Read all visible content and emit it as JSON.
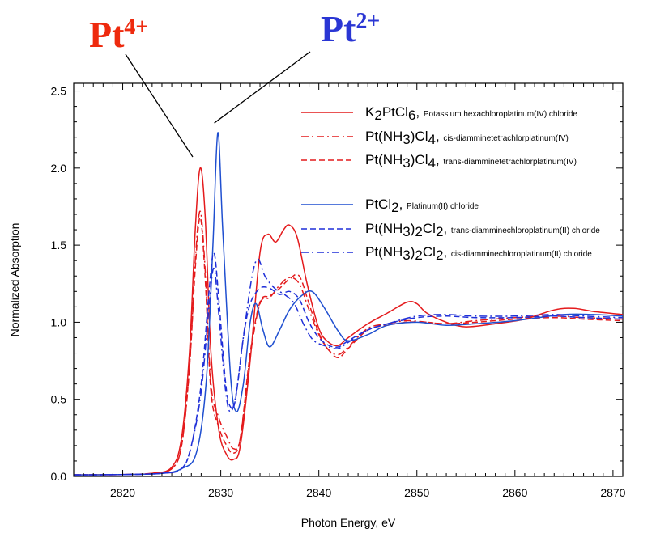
{
  "chart_data": {
    "type": "line",
    "xlabel": "Photon Energy, eV",
    "ylabel": "Normalized Absorption",
    "xlim": [
      2815,
      2871
    ],
    "ylim": [
      0,
      2.55
    ],
    "x_ticks": [
      "2820",
      "2830",
      "2840",
      "2850",
      "2860",
      "2870"
    ],
    "y_ticks": [
      "0.0",
      "0.5",
      "1.0",
      "1.5",
      "2.0",
      "2.5"
    ],
    "grid": false,
    "legend_position": "top-right",
    "annotations": [
      {
        "base": "Pt",
        "sup": "4+",
        "color": "#ee2a0e",
        "point_x": 2827.8,
        "point_y": 2.02
      },
      {
        "base": "Pt",
        "sup": "2+",
        "color": "#2a36d4",
        "point_x": 2830.0,
        "point_y": 2.24
      }
    ],
    "series": [
      {
        "legend": [
          {
            "t": "K"
          },
          {
            "t": "2",
            "sub": true
          },
          {
            "t": "PtCl"
          },
          {
            "t": "6",
            "sub": true
          },
          {
            "t": ",  "
          },
          {
            "t": "Potassium hexachloroplatinum(IV) chloride",
            "small": true
          }
        ],
        "color": "#e41a1c",
        "dash": "solid",
        "points": [
          [
            2815,
            0.01
          ],
          [
            2820,
            0.012
          ],
          [
            2823,
            0.02
          ],
          [
            2825,
            0.06
          ],
          [
            2826,
            0.25
          ],
          [
            2826.8,
            0.8
          ],
          [
            2827.4,
            1.6
          ],
          [
            2827.9,
            2.0
          ],
          [
            2828.4,
            1.7
          ],
          [
            2829,
            0.8
          ],
          [
            2829.8,
            0.3
          ],
          [
            2830.6,
            0.14
          ],
          [
            2831.3,
            0.11
          ],
          [
            2832,
            0.2
          ],
          [
            2833,
            0.75
          ],
          [
            2834,
            1.45
          ],
          [
            2834.8,
            1.57
          ],
          [
            2835.6,
            1.52
          ],
          [
            2836.4,
            1.6
          ],
          [
            2837,
            1.63
          ],
          [
            2837.8,
            1.55
          ],
          [
            2838.8,
            1.25
          ],
          [
            2840,
            0.96
          ],
          [
            2841,
            0.87
          ],
          [
            2842,
            0.85
          ],
          [
            2843,
            0.9
          ],
          [
            2845,
            0.99
          ],
          [
            2847,
            1.06
          ],
          [
            2849,
            1.13
          ],
          [
            2850,
            1.12
          ],
          [
            2851,
            1.06
          ],
          [
            2853,
            1.0
          ],
          [
            2855,
            0.97
          ],
          [
            2858,
            0.99
          ],
          [
            2861,
            1.02
          ],
          [
            2864,
            1.08
          ],
          [
            2866,
            1.09
          ],
          [
            2868,
            1.07
          ],
          [
            2871,
            1.05
          ]
        ]
      },
      {
        "legend": [
          {
            "t": "Pt(NH"
          },
          {
            "t": "3",
            "sub": true
          },
          {
            "t": ")Cl"
          },
          {
            "t": "4",
            "sub": true
          },
          {
            "t": ",  "
          },
          {
            "t": "cis-diamminetetrachlorplatinum(IV)",
            "small": true
          }
        ],
        "color": "#e41a1c",
        "dash": "dashdot",
        "points": [
          [
            2815,
            0.01
          ],
          [
            2820,
            0.012
          ],
          [
            2823,
            0.02
          ],
          [
            2825,
            0.05
          ],
          [
            2826,
            0.2
          ],
          [
            2826.8,
            0.7
          ],
          [
            2827.4,
            1.4
          ],
          [
            2827.9,
            1.72
          ],
          [
            2828.4,
            1.35
          ],
          [
            2829,
            0.6
          ],
          [
            2829.8,
            0.38
          ],
          [
            2830.6,
            0.26
          ],
          [
            2831.3,
            0.18
          ],
          [
            2832,
            0.25
          ],
          [
            2833,
            0.78
          ],
          [
            2834,
            1.12
          ],
          [
            2835,
            1.16
          ],
          [
            2836,
            1.24
          ],
          [
            2837,
            1.29
          ],
          [
            2838,
            1.25
          ],
          [
            2839,
            1.08
          ],
          [
            2840,
            0.92
          ],
          [
            2841,
            0.82
          ],
          [
            2842,
            0.79
          ],
          [
            2843,
            0.84
          ],
          [
            2845,
            0.96
          ],
          [
            2847,
            0.99
          ],
          [
            2849,
            1.01
          ],
          [
            2851,
            1.0
          ],
          [
            2853,
            0.99
          ],
          [
            2856,
            1.01
          ],
          [
            2860,
            1.03
          ],
          [
            2864,
            1.04
          ],
          [
            2867,
            1.03
          ],
          [
            2871,
            1.02
          ]
        ]
      },
      {
        "legend": [
          {
            "t": "Pt(NH"
          },
          {
            "t": "3",
            "sub": true
          },
          {
            "t": ")Cl"
          },
          {
            "t": "4",
            "sub": true
          },
          {
            "t": ",  "
          },
          {
            "t": "trans-diamminetetrachlorplatinum(IV)",
            "small": true
          }
        ],
        "color": "#e41a1c",
        "dash": "dash",
        "points": [
          [
            2815,
            0.01
          ],
          [
            2820,
            0.012
          ],
          [
            2823,
            0.02
          ],
          [
            2825,
            0.05
          ],
          [
            2826,
            0.2
          ],
          [
            2826.8,
            0.7
          ],
          [
            2827.4,
            1.35
          ],
          [
            2827.9,
            1.68
          ],
          [
            2828.4,
            1.3
          ],
          [
            2829,
            0.55
          ],
          [
            2829.8,
            0.32
          ],
          [
            2830.6,
            0.2
          ],
          [
            2831.3,
            0.15
          ],
          [
            2832,
            0.25
          ],
          [
            2833,
            0.8
          ],
          [
            2834,
            1.13
          ],
          [
            2835,
            1.17
          ],
          [
            2836,
            1.22
          ],
          [
            2837,
            1.28
          ],
          [
            2838,
            1.3
          ],
          [
            2839,
            1.12
          ],
          [
            2840,
            0.93
          ],
          [
            2841,
            0.82
          ],
          [
            2842,
            0.77
          ],
          [
            2843,
            0.83
          ],
          [
            2845,
            0.95
          ],
          [
            2847,
            0.98
          ],
          [
            2849,
            1.0
          ],
          [
            2851,
            1.0
          ],
          [
            2853,
            0.99
          ],
          [
            2856,
            1.0
          ],
          [
            2860,
            1.02
          ],
          [
            2864,
            1.03
          ],
          [
            2867,
            1.02
          ],
          [
            2871,
            1.01
          ]
        ]
      },
      {
        "legend": [
          {
            "t": "PtCl"
          },
          {
            "t": "2",
            "sub": true
          },
          {
            "t": ",  "
          },
          {
            "t": "Platinum(II) chloride",
            "small": true
          }
        ],
        "color": "#1f4fd0",
        "dash": "solid",
        "points": [
          [
            2815,
            0.01
          ],
          [
            2820,
            0.012
          ],
          [
            2824,
            0.02
          ],
          [
            2826,
            0.05
          ],
          [
            2827.5,
            0.15
          ],
          [
            2828.5,
            0.6
          ],
          [
            2829.2,
            1.5
          ],
          [
            2829.7,
            2.23
          ],
          [
            2830.2,
            1.6
          ],
          [
            2831,
            0.65
          ],
          [
            2831.6,
            0.42
          ],
          [
            2832.3,
            0.6
          ],
          [
            2833,
            1.0
          ],
          [
            2833.6,
            1.12
          ],
          [
            2834.3,
            0.95
          ],
          [
            2835,
            0.84
          ],
          [
            2836,
            0.95
          ],
          [
            2837,
            1.08
          ],
          [
            2838.2,
            1.17
          ],
          [
            2839.3,
            1.2
          ],
          [
            2840.5,
            1.1
          ],
          [
            2842,
            0.94
          ],
          [
            2843,
            0.88
          ],
          [
            2845,
            0.92
          ],
          [
            2847,
            0.98
          ],
          [
            2850,
            1.0
          ],
          [
            2853,
            0.98
          ],
          [
            2856,
            0.99
          ],
          [
            2860,
            1.01
          ],
          [
            2865,
            1.05
          ],
          [
            2868,
            1.05
          ],
          [
            2871,
            1.04
          ]
        ]
      },
      {
        "legend": [
          {
            "t": "Pt(NH"
          },
          {
            "t": "3",
            "sub": true
          },
          {
            "t": ")"
          },
          {
            "t": "2",
            "sub": true
          },
          {
            "t": "Cl"
          },
          {
            "t": "2",
            "sub": true
          },
          {
            "t": ",  "
          },
          {
            "t": "trans-diamminechloroplatinum(II) chloride",
            "small": true
          }
        ],
        "color": "#1f2fd8",
        "dash": "dash",
        "points": [
          [
            2815,
            0.01
          ],
          [
            2820,
            0.012
          ],
          [
            2824,
            0.02
          ],
          [
            2826,
            0.05
          ],
          [
            2827,
            0.2
          ],
          [
            2828,
            0.6
          ],
          [
            2828.8,
            1.2
          ],
          [
            2829.3,
            1.45
          ],
          [
            2829.8,
            1.15
          ],
          [
            2830.5,
            0.6
          ],
          [
            2831,
            0.45
          ],
          [
            2831.5,
            0.5
          ],
          [
            2832.3,
            0.9
          ],
          [
            2833,
            1.12
          ],
          [
            2834,
            1.22
          ],
          [
            2835,
            1.22
          ],
          [
            2836,
            1.18
          ],
          [
            2837,
            1.2
          ],
          [
            2838,
            1.15
          ],
          [
            2839,
            1.0
          ],
          [
            2840,
            0.9
          ],
          [
            2841,
            0.85
          ],
          [
            2842,
            0.84
          ],
          [
            2843,
            0.88
          ],
          [
            2845,
            0.95
          ],
          [
            2847,
            0.99
          ],
          [
            2850,
            1.03
          ],
          [
            2853,
            1.04
          ],
          [
            2856,
            1.03
          ],
          [
            2860,
            1.03
          ],
          [
            2864,
            1.04
          ],
          [
            2867,
            1.03
          ],
          [
            2871,
            1.02
          ]
        ]
      },
      {
        "legend": [
          {
            "t": "Pt(NH"
          },
          {
            "t": "3",
            "sub": true
          },
          {
            "t": ")"
          },
          {
            "t": "2",
            "sub": true
          },
          {
            "t": "Cl"
          },
          {
            "t": "2",
            "sub": true
          },
          {
            "t": ",  "
          },
          {
            "t": "cis-diamminechloroplatinum(II) chloride",
            "small": true
          }
        ],
        "color": "#1f2fd8",
        "dash": "dashdot",
        "points": [
          [
            2815,
            0.01
          ],
          [
            2820,
            0.012
          ],
          [
            2824,
            0.02
          ],
          [
            2826,
            0.05
          ],
          [
            2827,
            0.2
          ],
          [
            2828,
            0.55
          ],
          [
            2828.8,
            1.1
          ],
          [
            2829.3,
            1.35
          ],
          [
            2829.8,
            1.05
          ],
          [
            2830.5,
            0.55
          ],
          [
            2831,
            0.42
          ],
          [
            2831.6,
            0.55
          ],
          [
            2832.4,
            0.95
          ],
          [
            2833.2,
            1.3
          ],
          [
            2833.8,
            1.41
          ],
          [
            2834.5,
            1.3
          ],
          [
            2835.5,
            1.22
          ],
          [
            2836.5,
            1.18
          ],
          [
            2837.5,
            1.12
          ],
          [
            2838.5,
            0.98
          ],
          [
            2839.5,
            0.88
          ],
          [
            2841,
            0.84
          ],
          [
            2842,
            0.83
          ],
          [
            2843,
            0.87
          ],
          [
            2845,
            0.95
          ],
          [
            2847,
            0.99
          ],
          [
            2850,
            1.04
          ],
          [
            2853,
            1.05
          ],
          [
            2856,
            1.04
          ],
          [
            2860,
            1.04
          ],
          [
            2864,
            1.05
          ],
          [
            2867,
            1.04
          ],
          [
            2871,
            1.03
          ]
        ]
      }
    ]
  }
}
